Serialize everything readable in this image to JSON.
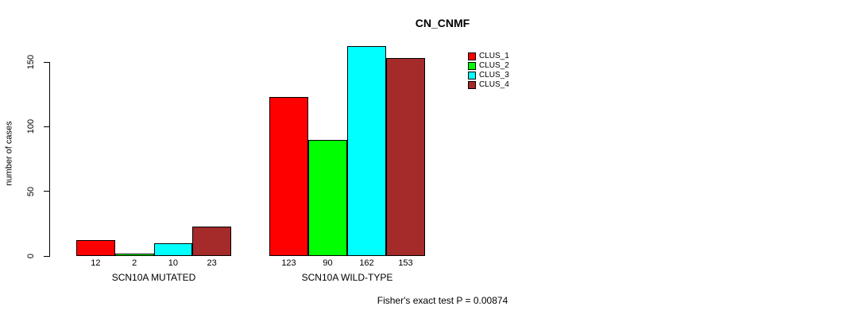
{
  "title": "CN_CNMF",
  "footer": "Fisher's exact test P = 0.00874",
  "chart_data": {
    "type": "bar",
    "title": "CN_CNMF",
    "xlabel": "",
    "ylabel": "number of cases",
    "ylim": [
      0,
      150
    ],
    "yticks": [
      0,
      50,
      100,
      150
    ],
    "grid": false,
    "legend_position": "top-right",
    "categories": [
      "SCN10A MUTATED",
      "SCN10A WILD-TYPE"
    ],
    "series": [
      {
        "name": "CLUS_1",
        "color": "#FF0000",
        "values": [
          12,
          123
        ]
      },
      {
        "name": "CLUS_2",
        "color": "#00FF00",
        "values": [
          2,
          90
        ]
      },
      {
        "name": "CLUS_3",
        "color": "#00FFFF",
        "values": [
          10,
          162
        ]
      },
      {
        "name": "CLUS_4",
        "color": "#A52A2A",
        "values": [
          23,
          153
        ]
      }
    ],
    "groups": [
      {
        "label": "SCN10A MUTATED",
        "values": [
          12,
          2,
          10,
          23
        ]
      },
      {
        "label": "SCN10A WILD-TYPE",
        "values": [
          123,
          90,
          162,
          153
        ]
      }
    ],
    "bar_value_labels": [
      [
        "12",
        "2",
        "10",
        "23"
      ],
      [
        "123",
        "90",
        "162",
        "153"
      ]
    ],
    "annotation": "Fisher's exact test P = 0.00874"
  }
}
